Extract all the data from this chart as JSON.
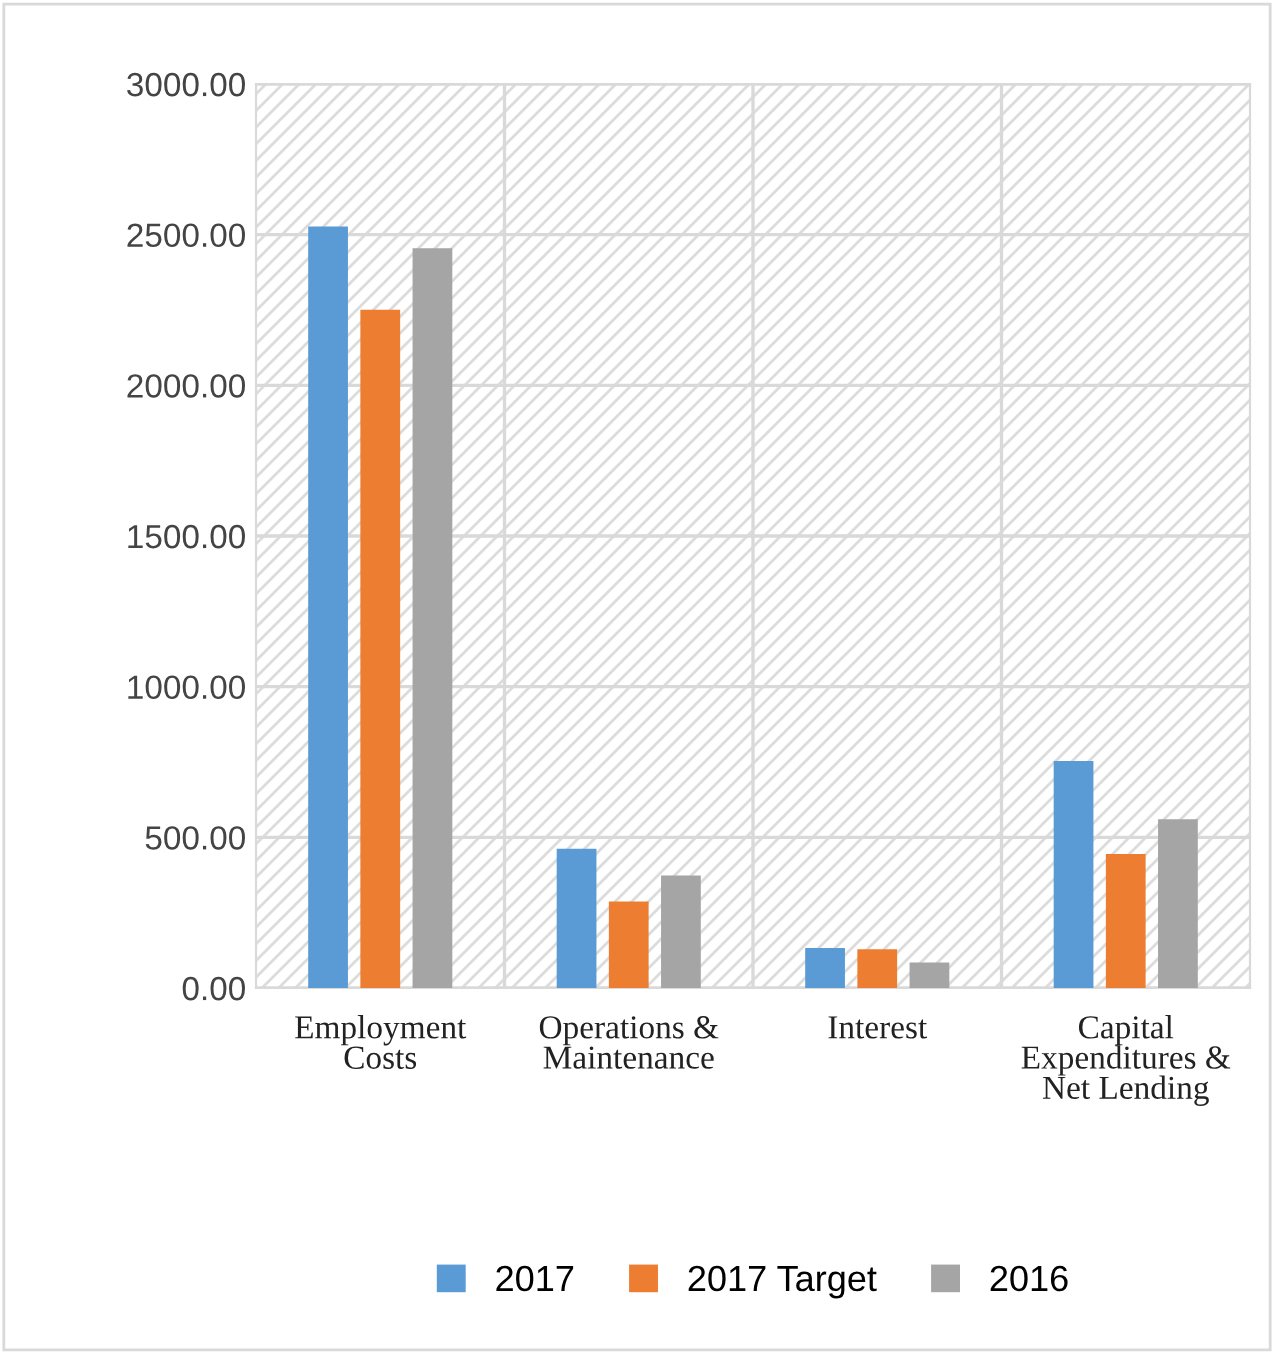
{
  "chart_data": {
    "type": "bar",
    "categories": [
      "Employment Costs",
      "Operations & Maintenance",
      "Interest",
      "Capital Expenditures & Net Lending"
    ],
    "series": [
      {
        "name": "2017",
        "color": "#5b9bd5",
        "values": [
          2527,
          462,
          133,
          753
        ]
      },
      {
        "name": "2017 Target",
        "color": "#ed7d31",
        "values": [
          2251,
          287,
          129,
          445
        ]
      },
      {
        "name": "2016",
        "color": "#a5a5a5",
        "values": [
          2455,
          373,
          85,
          560
        ]
      }
    ],
    "ylim": [
      0,
      3000
    ],
    "yticks": [
      {
        "value": 0,
        "label": "0.00"
      },
      {
        "value": 500,
        "label": "500.00"
      },
      {
        "value": 1000,
        "label": "1000.00"
      },
      {
        "value": 1500,
        "label": "1500.00"
      },
      {
        "value": 2000,
        "label": "2000.00"
      },
      {
        "value": 2500,
        "label": "2500.00"
      },
      {
        "value": 3000,
        "label": "3000.00"
      }
    ],
    "grid": true,
    "legend": "bottom"
  }
}
